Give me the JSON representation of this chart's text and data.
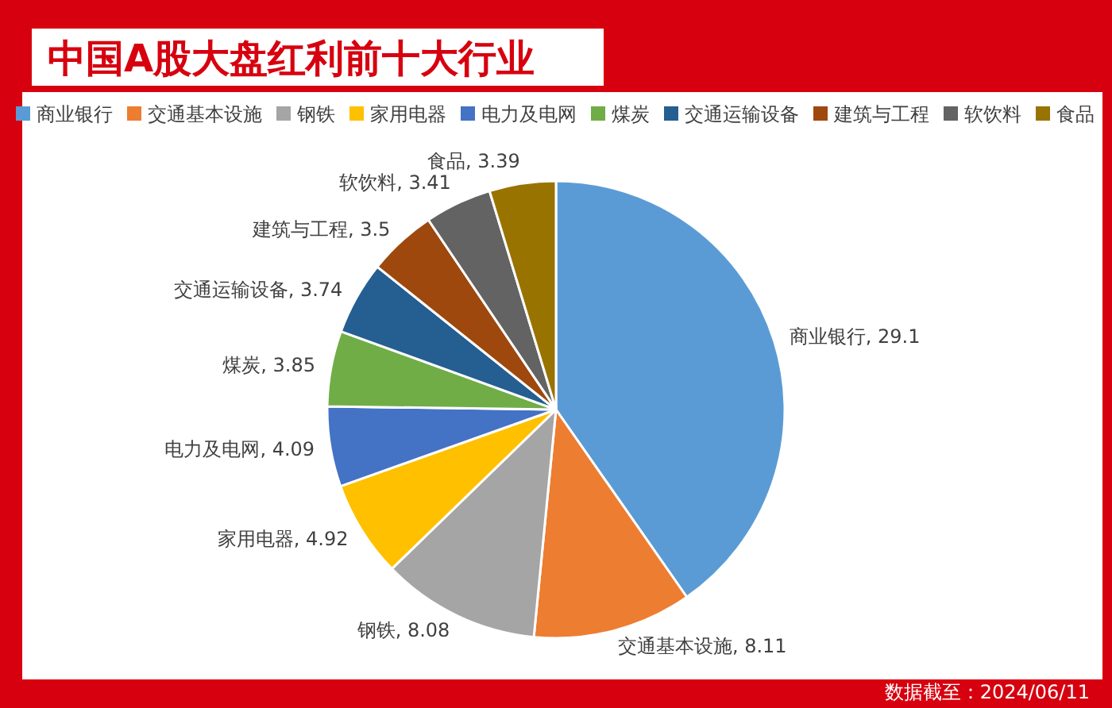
{
  "chart_data": {
    "type": "pie",
    "title": "中国A股大盘红利前十大行业",
    "categories": [
      "商业银行",
      "交通基本设施",
      "钢铁",
      "家用电器",
      "电力及电网",
      "煤炭",
      "交通运输设备",
      "建筑与工程",
      "软饮料",
      "食品"
    ],
    "values": [
      29.1,
      8.11,
      8.08,
      4.92,
      4.09,
      3.85,
      3.74,
      3.5,
      3.41,
      3.39
    ],
    "colors": [
      "#5b9bd5",
      "#ed7d31",
      "#a5a5a5",
      "#ffc000",
      "#4472c4",
      "#70ad47",
      "#255e91",
      "#9e480e",
      "#636363",
      "#997300"
    ],
    "legend": "top",
    "value_labels": [
      "商业银行, 29.1",
      "交通基本设施, 8.11",
      "钢铁, 8.08",
      "家用电器, 4.92",
      "电力及电网, 4.09",
      "煤炭, 3.85",
      "交通运输设备, 3.74",
      "建筑与工程, 3.5",
      "软饮料, 3.41",
      "食品, 3.39"
    ],
    "annotations": [
      "数据截至：2024/06/11"
    ]
  }
}
